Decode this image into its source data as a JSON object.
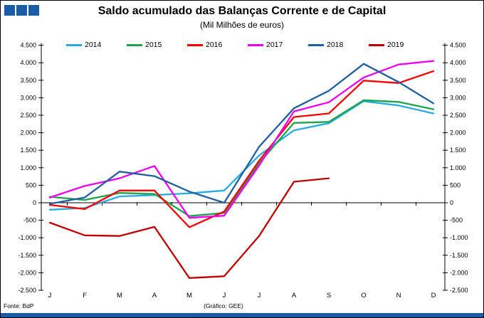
{
  "header": {
    "title": "Saldo acumulado das Balanças Corrente e de Capital",
    "subtitle": "(Mil Milhões de euros)"
  },
  "colors": {
    "brand_blue": "#1A5DA6",
    "axis_black": "#000000"
  },
  "footer": {
    "source": "Fonte: BdP",
    "credit": "(Gráfico: GEE)"
  },
  "chart_data": {
    "type": "line",
    "title": "Saldo acumulado das Balanças Corrente e de Capital",
    "subtitle": "(Mil Milhões de euros)",
    "categories": [
      "J",
      "F",
      "M",
      "A",
      "M",
      "J",
      "J",
      "A",
      "S",
      "O",
      "N",
      "D"
    ],
    "y_axis": {
      "min": -2500,
      "max": 4500,
      "step": 500,
      "dual": true,
      "tick_labels": [
        "4.500",
        "4.000",
        "3.500",
        "3.000",
        "2.500",
        "2.000",
        "1.500",
        "1.000",
        "500",
        "0",
        "-500",
        "-1.000",
        "-1.500",
        "-2.000",
        "-2.500"
      ]
    },
    "grid": false,
    "legend_position": "top",
    "series": [
      {
        "name": "2014",
        "color": "#29ABE2",
        "values": [
          -200,
          -150,
          180,
          220,
          270,
          350,
          1350,
          2070,
          2270,
          2900,
          2780,
          2550
        ]
      },
      {
        "name": "2015",
        "color": "#1EA44C",
        "values": [
          170,
          80,
          280,
          250,
          -380,
          -290,
          1130,
          2280,
          2310,
          2930,
          2880,
          2670
        ]
      },
      {
        "name": "2016",
        "color": "#FE0000",
        "values": [
          -60,
          -180,
          350,
          350,
          -700,
          -250,
          1200,
          2450,
          2550,
          3490,
          3420,
          3760
        ]
      },
      {
        "name": "2017",
        "color": "#EE00EE",
        "values": [
          150,
          480,
          700,
          1050,
          -430,
          -370,
          1060,
          2610,
          2870,
          3580,
          3950,
          4050
        ]
      },
      {
        "name": "2018",
        "color": "#1F5FA0",
        "values": [
          -30,
          150,
          890,
          760,
          320,
          0,
          1600,
          2700,
          3200,
          3970,
          3450,
          2840
        ]
      },
      {
        "name": "2019",
        "color": "#C00000",
        "values": [
          -570,
          -930,
          -950,
          -690,
          -2150,
          -2100,
          -950,
          600,
          700,
          null,
          null,
          null
        ]
      }
    ]
  }
}
